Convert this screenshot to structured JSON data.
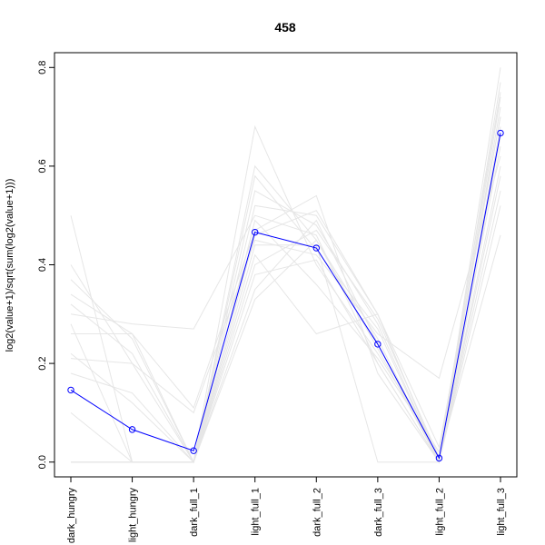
{
  "chart_data": {
    "type": "line",
    "title": "458",
    "xlabel": "",
    "ylabel": "log2(value+1)/sqrt(sum(log2(value+1)))",
    "categories": [
      "dark_hungry",
      "light_hungry",
      "dark_full_1",
      "light_full_1",
      "dark_full_2",
      "dark_full_3",
      "light_full_2",
      "light_full_3"
    ],
    "ylim": [
      -0.03,
      0.83
    ],
    "yticks": [
      0.0,
      0.2,
      0.4,
      0.6,
      0.8
    ],
    "ytick_labels": [
      "0.0",
      "0.2",
      "0.4",
      "0.6",
      "0.8"
    ],
    "grid": false,
    "legend": "none",
    "highlight_color": "#0000ff",
    "background_line_color": "#e6e6e6",
    "highlight": {
      "values": [
        0.146,
        0.066,
        0.023,
        0.466,
        0.434,
        0.239,
        0.008,
        0.667
      ]
    },
    "background_series": [
      {
        "values": [
          0.5,
          0.0,
          0.0,
          0.6,
          0.45,
          0.25,
          0.0,
          0.8
        ]
      },
      {
        "values": [
          0.4,
          0.2,
          0.0,
          0.68,
          0.4,
          0.22,
          0.02,
          0.75
        ]
      },
      {
        "values": [
          0.37,
          0.25,
          0.0,
          0.55,
          0.48,
          0.28,
          0.0,
          0.72
        ]
      },
      {
        "values": [
          0.34,
          0.26,
          0.0,
          0.52,
          0.5,
          0.3,
          0.03,
          0.7
        ]
      },
      {
        "values": [
          0.3,
          0.28,
          0.27,
          0.5,
          0.46,
          0.2,
          0.0,
          0.68
        ]
      },
      {
        "values": [
          0.26,
          0.26,
          0.11,
          0.47,
          0.54,
          0.18,
          0.0,
          0.66
        ]
      },
      {
        "values": [
          0.21,
          0.2,
          0.1,
          0.45,
          0.42,
          0.26,
          0.17,
          0.62
        ]
      },
      {
        "values": [
          0.28,
          0.0,
          0.0,
          0.44,
          0.44,
          0.0,
          0.0,
          0.6
        ]
      },
      {
        "values": [
          0.18,
          0.14,
          0.0,
          0.42,
          0.26,
          0.3,
          0.0,
          0.58
        ]
      },
      {
        "values": [
          0.0,
          0.0,
          0.0,
          0.35,
          0.49,
          0.24,
          0.0,
          0.55
        ]
      },
      {
        "values": [
          0.0,
          0.0,
          0.0,
          0.38,
          0.41,
          0.2,
          0.0,
          0.52
        ]
      },
      {
        "values": [
          0.1,
          0.0,
          0.0,
          0.4,
          0.47,
          0.29,
          0.01,
          0.46
        ]
      },
      {
        "values": [
          0.0,
          0.0,
          0.0,
          0.33,
          0.45,
          0.23,
          0.0,
          0.64
        ]
      },
      {
        "values": [
          0.22,
          0.12,
          0.0,
          0.58,
          0.43,
          0.27,
          0.0,
          0.74
        ]
      },
      {
        "values": [
          0.0,
          0.0,
          0.0,
          0.49,
          0.36,
          0.21,
          0.02,
          0.7
        ]
      },
      {
        "values": [
          0.32,
          0.22,
          0.0,
          0.46,
          0.51,
          0.3,
          0.0,
          0.77
        ]
      }
    ]
  }
}
